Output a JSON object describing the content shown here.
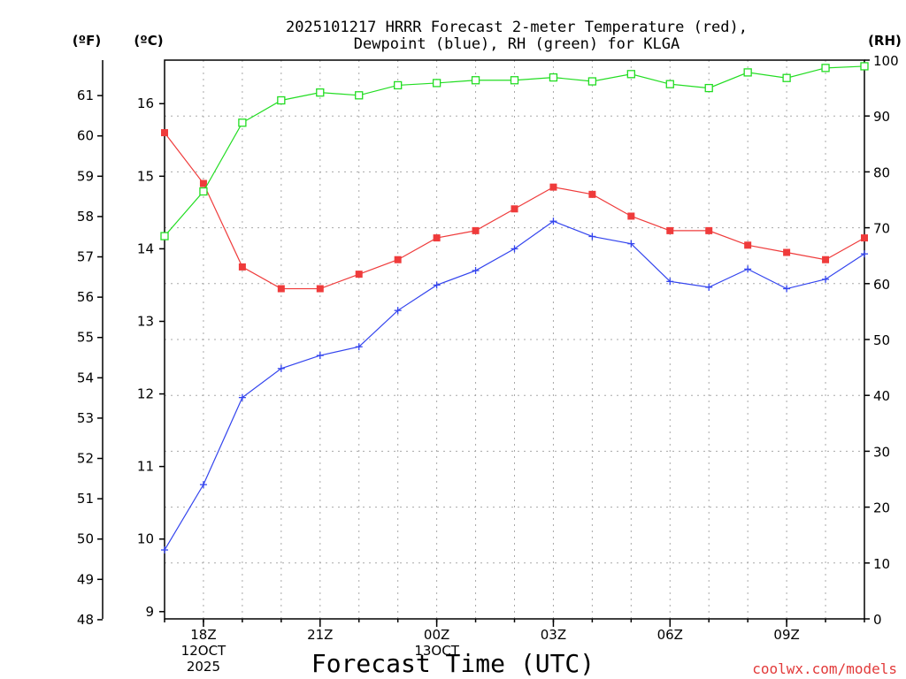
{
  "chart_data": {
    "type": "line",
    "title_line1": "2025101217 HRRR Forecast 2-meter Temperature (red),",
    "title_line2": "Dewpoint (blue), RH (green) for KLGA",
    "xlabel": "Forecast Time (UTC)",
    "watermark": "coolwx.com/models",
    "unit_f": "(ºF)",
    "unit_c": "(ºC)",
    "unit_rh": "(RH)",
    "x_ticks": [
      {
        "hour": 1,
        "label": "18Z",
        "sub1": "12OCT",
        "sub2": "2025"
      },
      {
        "hour": 4,
        "label": "21Z",
        "sub1": "",
        "sub2": ""
      },
      {
        "hour": 7,
        "label": "00Z",
        "sub1": "13OCT",
        "sub2": ""
      },
      {
        "hour": 10,
        "label": "03Z",
        "sub1": "",
        "sub2": ""
      },
      {
        "hour": 13,
        "label": "06Z",
        "sub1": "",
        "sub2": ""
      },
      {
        "hour": 16,
        "label": "09Z",
        "sub1": "",
        "sub2": ""
      }
    ],
    "x_range_hours": [
      0,
      18
    ],
    "y_left_celsius_range": [
      8.9,
      16.6
    ],
    "y_left_celsius_ticks": [
      "9",
      "10",
      "11",
      "12",
      "13",
      "14",
      "15",
      "16"
    ],
    "y_left_fahrenheit_ticks": [
      "48",
      "49",
      "50",
      "51",
      "52",
      "53",
      "54",
      "55",
      "56",
      "57",
      "58",
      "59",
      "60",
      "61"
    ],
    "y_right_rh_range": [
      0,
      100
    ],
    "y_right_rh_ticks": [
      "0",
      "10",
      "20",
      "30",
      "40",
      "50",
      "60",
      "70",
      "80",
      "90",
      "100"
    ],
    "series": [
      {
        "name": "Temperature (red)",
        "color": "#ef3b3b",
        "axis": "celsius",
        "marker": "filled-square",
        "x": [
          0,
          1,
          2,
          3,
          4,
          5,
          6,
          7,
          8,
          9,
          10,
          11,
          12,
          13,
          14,
          15,
          16,
          17,
          18
        ],
        "values": [
          15.6,
          14.9,
          13.75,
          13.45,
          13.45,
          13.65,
          13.85,
          14.15,
          14.25,
          14.55,
          14.85,
          14.75,
          14.45,
          14.25,
          14.25,
          14.05,
          13.95,
          13.85,
          14.15
        ]
      },
      {
        "name": "Dewpoint (blue)",
        "color": "#3344ee",
        "axis": "celsius",
        "marker": "plus",
        "x": [
          0,
          1,
          2,
          3,
          4,
          5,
          6,
          7,
          8,
          9,
          10,
          11,
          12,
          13,
          14,
          15,
          16,
          17,
          18
        ],
        "values": [
          9.85,
          10.75,
          11.95,
          12.35,
          12.53,
          12.65,
          13.15,
          13.5,
          13.7,
          14.0,
          14.38,
          14.17,
          14.07,
          13.55,
          13.47,
          13.72,
          13.45,
          13.58,
          13.93
        ]
      },
      {
        "name": "RH (green)",
        "color": "#22dd22",
        "axis": "rh",
        "marker": "open-square",
        "x": [
          0,
          1,
          2,
          3,
          4,
          5,
          6,
          7,
          8,
          9,
          10,
          11,
          12,
          13,
          14,
          15,
          16,
          17,
          18
        ],
        "values": [
          68.5,
          76.5,
          88.8,
          92.8,
          94.2,
          93.7,
          95.5,
          95.9,
          96.4,
          96.4,
          96.9,
          96.2,
          97.5,
          95.7,
          95.0,
          97.8,
          96.8,
          98.6,
          98.9
        ]
      }
    ]
  }
}
